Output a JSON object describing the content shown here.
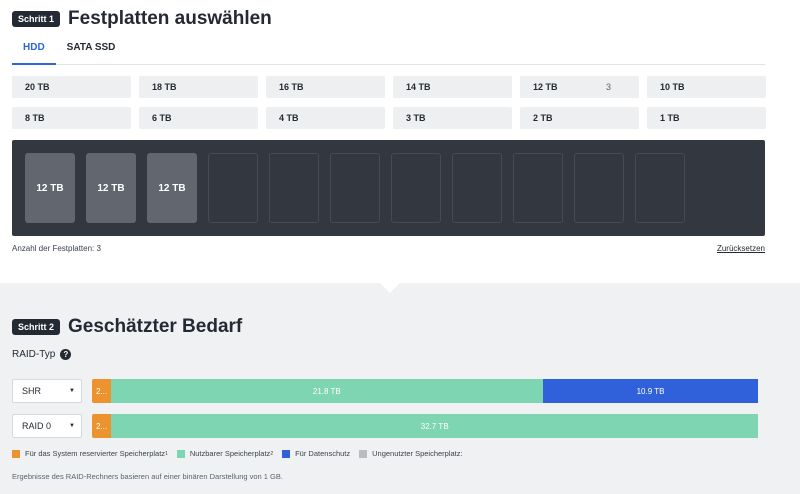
{
  "step1": {
    "badge": "Schritt 1",
    "title": "Festplatten auswählen",
    "tabs": [
      {
        "label": "HDD",
        "active": true
      },
      {
        "label": "SATA SSD",
        "active": false
      }
    ],
    "sizes_row1": [
      {
        "label": "20 TB",
        "count": ""
      },
      {
        "label": "18 TB",
        "count": ""
      },
      {
        "label": "16 TB",
        "count": ""
      },
      {
        "label": "14 TB",
        "count": ""
      },
      {
        "label": "12 TB",
        "count": "3"
      },
      {
        "label": "10 TB",
        "count": ""
      }
    ],
    "sizes_row2": [
      {
        "label": "8 TB",
        "count": ""
      },
      {
        "label": "6 TB",
        "count": ""
      },
      {
        "label": "4 TB",
        "count": ""
      },
      {
        "label": "3 TB",
        "count": ""
      },
      {
        "label": "2 TB",
        "count": ""
      },
      {
        "label": "1 TB",
        "count": ""
      }
    ],
    "bays": [
      "12 TB",
      "12 TB",
      "12 TB",
      "",
      "",
      "",
      "",
      "",
      "",
      "",
      "",
      ""
    ],
    "disk_count_text": "Anzahl der Festplatten: 3",
    "reset_label": "Zurücksetzen"
  },
  "step2": {
    "badge": "Schritt 2",
    "title": "Geschätzter Bedarf",
    "raid_label": "RAID-Typ",
    "help_icon": "?",
    "rows": [
      {
        "type": "SHR",
        "system": "2...",
        "usable": "21.8 TB",
        "usable_fraction": 0.66,
        "protection": "10.9 TB",
        "protection_fraction": 0.33
      },
      {
        "type": "RAID 0",
        "system": "2...",
        "usable": "32.7 TB",
        "usable_fraction": 0.99,
        "protection": "",
        "protection_fraction": 0
      }
    ],
    "legend": [
      {
        "label": "Für das System reservierter Speicherplatz",
        "sup": "1",
        "color": "#ec9330"
      },
      {
        "label": "Nutzbarer Speicherplatz",
        "sup": "2",
        "color": "#7dd5b2"
      },
      {
        "label": "Für Datenschutz",
        "sup": "",
        "color": "#3061db"
      },
      {
        "label": "Ungenutzter Speicherplatz:",
        "sup": "",
        "color": "#b9bcc1"
      }
    ],
    "footnote": "Ergebnisse des RAID-Rechners basieren auf einer binären Darstellung von 1 GB."
  }
}
